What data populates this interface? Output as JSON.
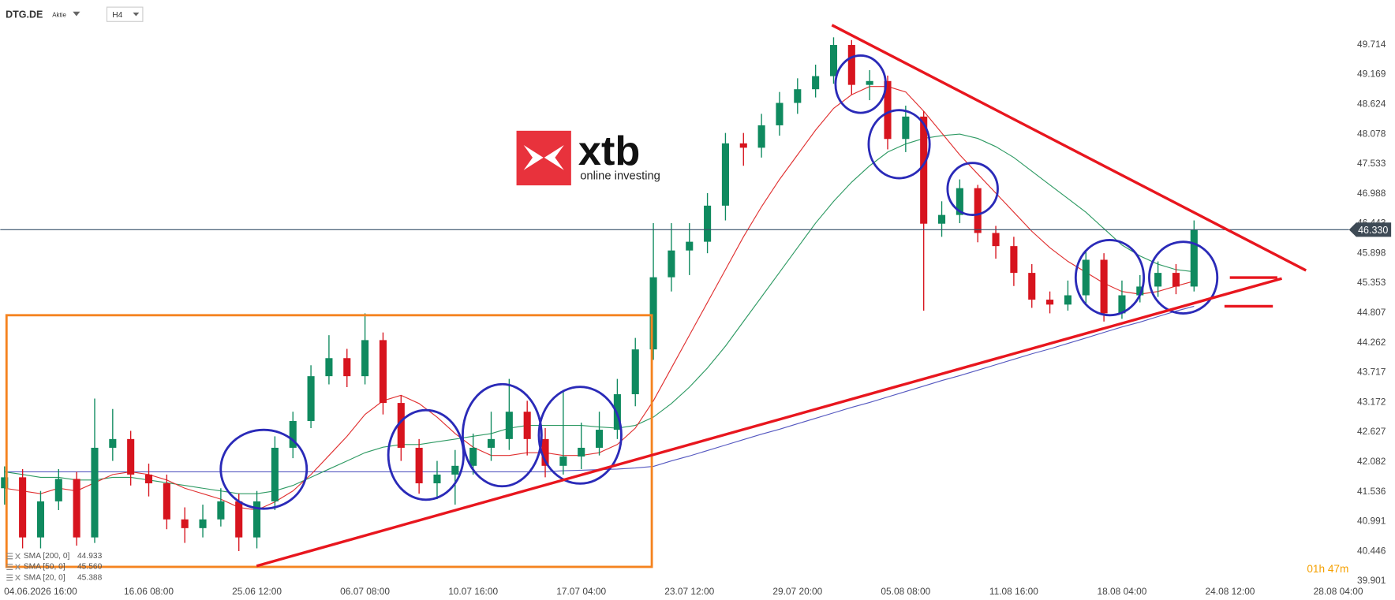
{
  "header": {
    "symbol": "DTG.DE",
    "asset_type": "Aktie",
    "timeframe": "H4"
  },
  "logo": {
    "name": "xtb",
    "tagline": "online investing"
  },
  "countdown": "01h 47m",
  "chart_data": {
    "type": "candlestick",
    "categories": [
      null,
      null,
      "04.06.2026 16:00",
      null,
      null,
      null,
      null,
      null,
      "16.06 08:00",
      null,
      null,
      null,
      null,
      null,
      "25.06 12:00",
      null,
      null,
      null,
      null,
      null,
      "06.07 08:00",
      null,
      null,
      null,
      null,
      null,
      "10.07 16:00",
      null,
      null,
      null,
      null,
      null,
      "17.07 04:00",
      null,
      null,
      null,
      null,
      null,
      "23.07 12:00",
      null,
      null,
      null,
      null,
      null,
      "29.07 20:00",
      null,
      null,
      null,
      null,
      null,
      "05.08 08:00",
      null,
      null,
      null,
      null,
      null,
      "11.08 16:00",
      null,
      null,
      null,
      null,
      null,
      "18.08 04:00",
      null,
      null,
      null,
      null,
      null,
      "24.08 12:00",
      null,
      null,
      null,
      null,
      null,
      "28.08 04:00",
      null
    ],
    "open": [
      41.6,
      41.8,
      40.7,
      41.36,
      41.77,
      40.7,
      42.34,
      42.5,
      41.85,
      41.69,
      41.03,
      40.87,
      41.03,
      41.36,
      40.7,
      41.36,
      42.34,
      42.83,
      43.65,
      43.98,
      43.65,
      44.31,
      43.16,
      42.34,
      41.69,
      41.85,
      42.01,
      42.34,
      42.5,
      43.0,
      42.5,
      42.01,
      42.18,
      42.34,
      42.67,
      43.32,
      44.14,
      45.46,
      45.95,
      46.11,
      46.77,
      47.91,
      47.83,
      48.24,
      48.65,
      48.9,
      49.14,
      49.71,
      48.98,
      49.05,
      47.99,
      48.4,
      46.44,
      46.6,
      47.09,
      46.27,
      46.03,
      45.54,
      45.05,
      44.96,
      45.13,
      45.78,
      44.8,
      45.13,
      45.29,
      45.54,
      45.29,
      null,
      null,
      null,
      null,
      null,
      null,
      null,
      null,
      null
    ],
    "high": [
      42.0,
      41.95,
      41.55,
      41.95,
      41.9,
      43.24,
      43.05,
      42.65,
      42.05,
      41.85,
      41.25,
      41.3,
      41.6,
      41.5,
      41.55,
      42.55,
      43.0,
      43.85,
      44.4,
      44.15,
      44.8,
      44.45,
      43.3,
      42.5,
      42.1,
      42.3,
      42.6,
      43.0,
      43.6,
      43.2,
      42.7,
      43.4,
      42.8,
      43.0,
      43.6,
      44.35,
      46.45,
      46.45,
      46.45,
      47.0,
      48.1,
      48.1,
      48.45,
      48.85,
      49.1,
      49.35,
      49.85,
      49.8,
      49.25,
      49.15,
      48.6,
      48.5,
      46.85,
      47.25,
      47.15,
      46.4,
      46.2,
      45.7,
      45.2,
      45.4,
      45.95,
      45.9,
      45.4,
      45.5,
      45.75,
      45.7,
      46.5,
      null,
      null,
      null,
      null,
      null,
      null,
      null,
      null,
      null
    ],
    "low": [
      41.3,
      40.5,
      40.5,
      41.2,
      40.55,
      40.6,
      42.1,
      41.65,
      41.45,
      40.85,
      40.6,
      40.7,
      40.9,
      40.45,
      40.5,
      41.2,
      42.15,
      42.7,
      43.5,
      43.45,
      43.5,
      42.95,
      42.1,
      41.5,
      41.4,
      41.3,
      41.85,
      42.1,
      42.3,
      42.2,
      41.8,
      41.85,
      41.95,
      42.2,
      42.5,
      43.1,
      43.95,
      45.2,
      45.5,
      45.9,
      46.5,
      47.5,
      47.65,
      48.05,
      48.45,
      48.75,
      49.0,
      48.8,
      48.7,
      47.8,
      47.75,
      44.85,
      46.2,
      46.45,
      46.1,
      45.8,
      45.3,
      44.9,
      44.8,
      44.85,
      44.95,
      44.65,
      44.7,
      45.0,
      45.1,
      45.15,
      45.2,
      null,
      null,
      null,
      null,
      null,
      null,
      null,
      null,
      null
    ],
    "close": [
      41.8,
      40.7,
      41.36,
      41.77,
      40.7,
      42.34,
      42.5,
      41.85,
      41.69,
      41.03,
      40.87,
      41.03,
      41.36,
      40.7,
      41.36,
      42.34,
      42.83,
      43.65,
      43.98,
      43.65,
      44.31,
      43.16,
      42.34,
      41.69,
      41.85,
      42.01,
      42.34,
      42.5,
      43.0,
      42.5,
      42.01,
      42.18,
      42.34,
      42.67,
      43.32,
      44.14,
      45.46,
      45.95,
      46.11,
      46.77,
      47.91,
      47.83,
      48.24,
      48.65,
      48.9,
      49.14,
      49.71,
      48.98,
      49.05,
      47.99,
      48.4,
      46.44,
      46.6,
      47.09,
      46.27,
      46.03,
      45.54,
      45.05,
      44.96,
      45.13,
      45.78,
      44.8,
      45.13,
      45.29,
      45.54,
      45.29,
      46.33,
      null,
      null,
      null,
      null,
      null,
      null,
      null,
      null,
      null
    ],
    "up_color": "#0f8a5f",
    "down_color": "#d7141e",
    "ylim": [
      39.85,
      50.5
    ],
    "yticks": [
      39.901,
      40.446,
      40.991,
      41.536,
      42.082,
      42.627,
      43.172,
      43.717,
      44.262,
      44.807,
      45.353,
      45.898,
      46.443,
      46.988,
      47.533,
      48.078,
      48.624,
      49.169,
      49.714
    ],
    "grid": false,
    "last_price": {
      "value": 46.33,
      "label": "46.330"
    },
    "series": [
      {
        "name": "SMA [200, 0]",
        "color": "#5558c0",
        "legend_value": 44.933,
        "values": [
          41.9,
          41.9,
          41.9,
          41.9,
          41.9,
          41.9,
          41.9,
          41.9,
          41.9,
          41.9,
          41.9,
          41.9,
          41.9,
          41.9,
          41.9,
          41.9,
          41.9,
          41.9,
          41.9,
          41.9,
          41.9,
          41.9,
          41.9,
          41.9,
          41.9,
          41.9,
          41.9,
          41.9,
          41.9,
          41.9,
          41.9,
          41.92,
          41.93,
          41.94,
          41.95,
          41.97,
          42.0,
          42.1,
          42.19,
          42.29,
          42.39,
          42.49,
          42.59,
          42.68,
          42.78,
          42.88,
          42.98,
          43.08,
          43.17,
          43.27,
          43.37,
          43.47,
          43.57,
          43.66,
          43.76,
          43.86,
          43.96,
          44.06,
          44.15,
          44.25,
          44.35,
          44.45,
          44.55,
          44.64,
          44.74,
          44.84,
          44.93,
          null,
          null,
          null,
          null,
          null,
          null,
          null,
          null,
          null
        ]
      },
      {
        "name": "SMA [50, 0]",
        "color": "#2e9a63",
        "legend_value": {
          "value": 45.56,
          "label": "45.560"
        },
        "values": [
          41.9,
          41.85,
          41.8,
          41.8,
          41.75,
          41.75,
          41.8,
          41.8,
          41.75,
          41.7,
          41.65,
          41.6,
          41.55,
          41.5,
          41.5,
          41.55,
          41.65,
          41.8,
          41.95,
          42.1,
          42.25,
          42.35,
          42.4,
          42.4,
          42.45,
          42.5,
          42.55,
          42.6,
          42.7,
          42.75,
          42.75,
          42.75,
          42.75,
          42.72,
          42.7,
          42.75,
          42.9,
          43.15,
          43.45,
          43.8,
          44.2,
          44.65,
          45.1,
          45.55,
          46.0,
          46.45,
          46.85,
          47.2,
          47.5,
          47.75,
          47.9,
          48.0,
          48.05,
          48.08,
          48.0,
          47.85,
          47.65,
          47.4,
          47.15,
          46.9,
          46.65,
          46.35,
          46.05,
          45.85,
          45.7,
          45.6,
          45.56,
          null,
          null,
          null,
          null,
          null,
          null,
          null,
          null,
          null
        ]
      },
      {
        "name": "SMA [20, 0]",
        "color": "#e03030",
        "legend_value": 45.388,
        "values": [
          41.6,
          41.55,
          41.5,
          41.6,
          41.55,
          41.7,
          41.85,
          41.9,
          41.85,
          41.75,
          41.6,
          41.5,
          41.4,
          41.25,
          41.2,
          41.35,
          41.55,
          41.85,
          42.2,
          42.55,
          42.95,
          43.2,
          43.3,
          43.15,
          42.9,
          42.6,
          42.35,
          42.2,
          42.2,
          42.25,
          42.25,
          42.2,
          42.2,
          42.25,
          42.4,
          42.7,
          43.2,
          43.8,
          44.4,
          45.0,
          45.6,
          46.2,
          46.75,
          47.25,
          47.7,
          48.15,
          48.55,
          48.8,
          48.95,
          48.95,
          48.85,
          48.5,
          48.1,
          47.7,
          47.35,
          47.0,
          46.65,
          46.3,
          46.0,
          45.75,
          45.55,
          45.35,
          45.2,
          45.15,
          45.2,
          45.3,
          45.39,
          null,
          null,
          null,
          null,
          null,
          null,
          null,
          null,
          null
        ]
      }
    ]
  }
}
